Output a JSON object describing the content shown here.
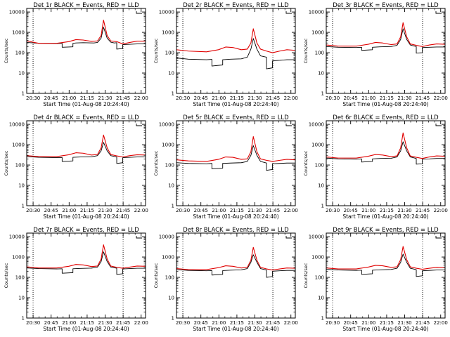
{
  "page": {
    "background": "#ffffff",
    "axis_color": "#000000",
    "events_color": "#000000",
    "lld_color": "#e00000"
  },
  "shared": {
    "xlabel": "Start Time (01-Aug-08 20:24:40)",
    "ylabel": "Counts/sec",
    "x_tick_labels": [
      "20:30",
      "20:45",
      "21:00",
      "21:15",
      "21:30",
      "21:45",
      "22:00"
    ],
    "y_tick_labels": [
      "1",
      "10",
      "100",
      "1000",
      "10000"
    ]
  },
  "chart_data": [
    {
      "type": "line",
      "title": "Det 1r BLACK = Events, RED = LLD",
      "x_unit": "minutes after 20:24:40",
      "xlim": [
        0,
        99
      ],
      "ylim": [
        1,
        15000
      ],
      "ylog": true,
      "vlines_minutes": [
        5.3,
        80.3
      ],
      "legend": "top-right",
      "series": [
        {
          "name": "Events",
          "color": "#000000",
          "x": [
            0,
            10,
            25,
            29.5,
            29.5,
            38.5,
            38.5,
            41,
            47,
            56,
            59,
            62,
            64,
            67,
            70,
            73,
            75,
            75,
            80,
            80,
            86,
            92,
            99
          ],
          "y": [
            320,
            290,
            280,
            290,
            185,
            195,
            290,
            300,
            310,
            300,
            320,
            520,
            1800,
            520,
            330,
            300,
            310,
            150,
            160,
            250,
            260,
            270,
            270
          ]
        },
        {
          "name": "LLD",
          "color": "#e00000",
          "x": [
            0,
            10,
            25,
            35,
            41,
            47,
            54,
            59,
            62,
            64,
            67,
            70,
            75,
            80,
            86,
            92,
            99
          ],
          "y": [
            380,
            290,
            290,
            350,
            440,
            420,
            360,
            380,
            700,
            4000,
            700,
            380,
            350,
            270,
            320,
            370,
            370
          ]
        }
      ]
    },
    {
      "type": "line",
      "title": "Det 2r BLACK = Events, RED = LLD",
      "x_unit": "minutes after 20:24:40",
      "xlim": [
        0,
        99
      ],
      "ylim": [
        1,
        15000
      ],
      "ylog": true,
      "vlines_minutes": [
        5.3,
        80.3
      ],
      "legend": "top-right",
      "series": [
        {
          "name": "Events",
          "color": "#000000",
          "x": [
            0,
            10,
            25,
            29.5,
            29.5,
            38.5,
            38.5,
            45,
            54,
            59,
            62,
            64,
            67,
            70,
            75,
            75,
            80,
            80,
            86,
            92,
            99
          ],
          "y": [
            55,
            48,
            45,
            47,
            22,
            25,
            45,
            48,
            50,
            60,
            150,
            500,
            150,
            70,
            60,
            16,
            18,
            40,
            42,
            45,
            45
          ]
        },
        {
          "name": "LLD",
          "color": "#e00000",
          "x": [
            0,
            10,
            25,
            35,
            41,
            47,
            54,
            59,
            62,
            64,
            67,
            70,
            75,
            80,
            86,
            92,
            99
          ],
          "y": [
            140,
            120,
            110,
            140,
            190,
            180,
            140,
            150,
            300,
            1500,
            300,
            150,
            120,
            100,
            120,
            140,
            130
          ]
        }
      ]
    },
    {
      "type": "line",
      "title": "Det 3r BLACK = Events, RED = LLD",
      "x_unit": "minutes after 20:24:40",
      "xlim": [
        0,
        99
      ],
      "ylim": [
        1,
        15000
      ],
      "ylog": true,
      "vlines_minutes": [
        5.3,
        80.3
      ],
      "legend": "top-right",
      "series": [
        {
          "name": "Events",
          "color": "#000000",
          "x": [
            0,
            10,
            25,
            29.5,
            29.5,
            38.5,
            38.5,
            45,
            54,
            59,
            62,
            64,
            67,
            70,
            75,
            75,
            80,
            80,
            86,
            92,
            99
          ],
          "y": [
            200,
            185,
            180,
            185,
            130,
            140,
            185,
            195,
            200,
            230,
            450,
            1500,
            450,
            240,
            200,
            95,
            100,
            180,
            185,
            190,
            190
          ]
        },
        {
          "name": "LLD",
          "color": "#e00000",
          "x": [
            0,
            10,
            25,
            35,
            41,
            47,
            54,
            59,
            62,
            64,
            67,
            70,
            75,
            80,
            86,
            92,
            99
          ],
          "y": [
            240,
            210,
            210,
            260,
            320,
            300,
            250,
            270,
            600,
            3000,
            600,
            270,
            230,
            200,
            240,
            270,
            260
          ]
        }
      ]
    },
    {
      "type": "line",
      "title": "Det 4r BLACK = Events, RED = LLD",
      "x_unit": "minutes after 20:24:40",
      "xlim": [
        0,
        99
      ],
      "ylim": [
        1,
        15000
      ],
      "ylog": true,
      "vlines_minutes": [
        5.3,
        80.3
      ],
      "legend": "top-right",
      "series": [
        {
          "name": "Events",
          "color": "#000000",
          "x": [
            0,
            10,
            25,
            29.5,
            29.5,
            38.5,
            38.5,
            45,
            54,
            59,
            62,
            64,
            67,
            70,
            75,
            75,
            80,
            80,
            86,
            92,
            99
          ],
          "y": [
            260,
            240,
            230,
            235,
            150,
            160,
            240,
            250,
            255,
            290,
            500,
            1300,
            500,
            290,
            250,
            120,
            130,
            230,
            240,
            250,
            250
          ]
        },
        {
          "name": "LLD",
          "color": "#e00000",
          "x": [
            0,
            10,
            25,
            35,
            41,
            47,
            54,
            59,
            62,
            64,
            67,
            70,
            75,
            80,
            86,
            92,
            99
          ],
          "y": [
            290,
            260,
            260,
            320,
            400,
            380,
            310,
            330,
            700,
            3000,
            700,
            330,
            280,
            250,
            290,
            320,
            310
          ]
        }
      ]
    },
    {
      "type": "line",
      "title": "Det 5r BLACK = Events, RED = LLD",
      "x_unit": "minutes after 20:24:40",
      "xlim": [
        0,
        99
      ],
      "ylim": [
        1,
        15000
      ],
      "ylog": true,
      "vlines_minutes": [
        5.3,
        80.3
      ],
      "legend": "top-right",
      "series": [
        {
          "name": "Events",
          "color": "#000000",
          "x": [
            0,
            10,
            25,
            29.5,
            29.5,
            38.5,
            38.5,
            45,
            54,
            59,
            62,
            64,
            67,
            70,
            75,
            75,
            80,
            80,
            86,
            92,
            99
          ],
          "y": [
            130,
            120,
            115,
            120,
            65,
            70,
            120,
            125,
            130,
            150,
            300,
            900,
            300,
            150,
            125,
            55,
            60,
            115,
            120,
            125,
            125
          ]
        },
        {
          "name": "LLD",
          "color": "#e00000",
          "x": [
            0,
            10,
            25,
            35,
            41,
            47,
            54,
            59,
            62,
            64,
            67,
            70,
            75,
            80,
            86,
            92,
            99
          ],
          "y": [
            180,
            160,
            150,
            190,
            250,
            240,
            190,
            200,
            450,
            2500,
            450,
            200,
            170,
            150,
            170,
            190,
            180
          ]
        }
      ]
    },
    {
      "type": "line",
      "title": "Det 6r BLACK = Events, RED = LLD",
      "x_unit": "minutes after 20:24:40",
      "xlim": [
        0,
        99
      ],
      "ylim": [
        1,
        15000
      ],
      "ylog": true,
      "vlines_minutes": [
        5.3,
        80.3
      ],
      "legend": "top-right",
      "series": [
        {
          "name": "Events",
          "color": "#000000",
          "x": [
            0,
            10,
            25,
            29.5,
            29.5,
            38.5,
            38.5,
            45,
            54,
            59,
            62,
            64,
            67,
            70,
            75,
            75,
            80,
            80,
            86,
            92,
            99
          ],
          "y": [
            220,
            200,
            195,
            200,
            140,
            150,
            200,
            210,
            215,
            250,
            500,
            1400,
            500,
            250,
            210,
            110,
            115,
            195,
            200,
            210,
            210
          ]
        },
        {
          "name": "LLD",
          "color": "#e00000",
          "x": [
            0,
            10,
            25,
            35,
            41,
            47,
            54,
            59,
            62,
            64,
            67,
            70,
            75,
            80,
            86,
            92,
            99
          ],
          "y": [
            250,
            220,
            220,
            270,
            330,
            310,
            260,
            280,
            700,
            3800,
            700,
            280,
            240,
            210,
            250,
            280,
            270
          ]
        }
      ]
    },
    {
      "type": "line",
      "title": "Det 7r BLACK = Events, RED = LLD",
      "x_unit": "minutes after 20:24:40",
      "xlim": [
        0,
        99
      ],
      "ylim": [
        1,
        15000
      ],
      "ylog": true,
      "vlines_minutes": [
        5.3,
        80.3
      ],
      "legend": "top-right",
      "series": [
        {
          "name": "Events",
          "color": "#000000",
          "x": [
            0,
            10,
            25,
            29.5,
            29.5,
            38.5,
            38.5,
            45,
            54,
            59,
            62,
            64,
            67,
            70,
            75,
            75,
            80,
            80,
            86,
            92,
            99
          ],
          "y": [
            290,
            270,
            260,
            265,
            160,
            170,
            265,
            275,
            285,
            320,
            600,
            1800,
            600,
            320,
            280,
            140,
            150,
            260,
            270,
            280,
            280
          ]
        },
        {
          "name": "LLD",
          "color": "#e00000",
          "x": [
            0,
            10,
            25,
            35,
            41,
            47,
            54,
            59,
            62,
            64,
            67,
            70,
            75,
            80,
            86,
            92,
            99
          ],
          "y": [
            330,
            290,
            290,
            350,
            430,
            410,
            340,
            360,
            800,
            4000,
            800,
            360,
            310,
            280,
            320,
            360,
            350
          ]
        }
      ]
    },
    {
      "type": "line",
      "title": "Det 8r BLACK = Events, RED = LLD",
      "x_unit": "minutes after 20:24:40",
      "xlim": [
        0,
        99
      ],
      "ylim": [
        1,
        15000
      ],
      "ylog": true,
      "vlines_minutes": [
        5.3,
        80.3
      ],
      "legend": "top-right",
      "series": [
        {
          "name": "Events",
          "color": "#000000",
          "x": [
            0,
            10,
            25,
            29.5,
            29.5,
            38.5,
            38.5,
            45,
            54,
            59,
            62,
            64,
            67,
            70,
            75,
            75,
            80,
            80,
            86,
            92,
            99
          ],
          "y": [
            240,
            220,
            210,
            215,
            130,
            140,
            215,
            225,
            235,
            270,
            550,
            1300,
            550,
            270,
            230,
            100,
            110,
            200,
            210,
            220,
            220
          ]
        },
        {
          "name": "LLD",
          "color": "#e00000",
          "x": [
            0,
            10,
            25,
            35,
            41,
            47,
            54,
            59,
            62,
            64,
            67,
            70,
            75,
            80,
            86,
            92,
            99
          ],
          "y": [
            270,
            240,
            240,
            300,
            370,
            350,
            290,
            310,
            700,
            3000,
            700,
            310,
            260,
            230,
            260,
            290,
            280
          ]
        }
      ]
    },
    {
      "type": "line",
      "title": "Det 9r BLACK = Events, RED = LLD",
      "x_unit": "minutes after 20:24:40",
      "xlim": [
        0,
        99
      ],
      "ylim": [
        1,
        15000
      ],
      "ylog": true,
      "vlines_minutes": [
        5.3,
        80.3
      ],
      "legend": "top-right",
      "series": [
        {
          "name": "Events",
          "color": "#000000",
          "x": [
            0,
            10,
            25,
            29.5,
            29.5,
            38.5,
            38.5,
            45,
            54,
            59,
            62,
            64,
            67,
            70,
            75,
            75,
            80,
            80,
            86,
            92,
            99
          ],
          "y": [
            250,
            230,
            220,
            225,
            140,
            150,
            225,
            235,
            245,
            280,
            550,
            1400,
            550,
            280,
            240,
            110,
            120,
            210,
            220,
            230,
            230
          ]
        },
        {
          "name": "LLD",
          "color": "#e00000",
          "x": [
            0,
            10,
            25,
            35,
            41,
            47,
            54,
            59,
            62,
            64,
            67,
            70,
            75,
            80,
            86,
            92,
            99
          ],
          "y": [
            290,
            260,
            260,
            320,
            390,
            370,
            310,
            330,
            750,
            3300,
            750,
            330,
            280,
            250,
            280,
            310,
            300
          ]
        }
      ]
    }
  ]
}
